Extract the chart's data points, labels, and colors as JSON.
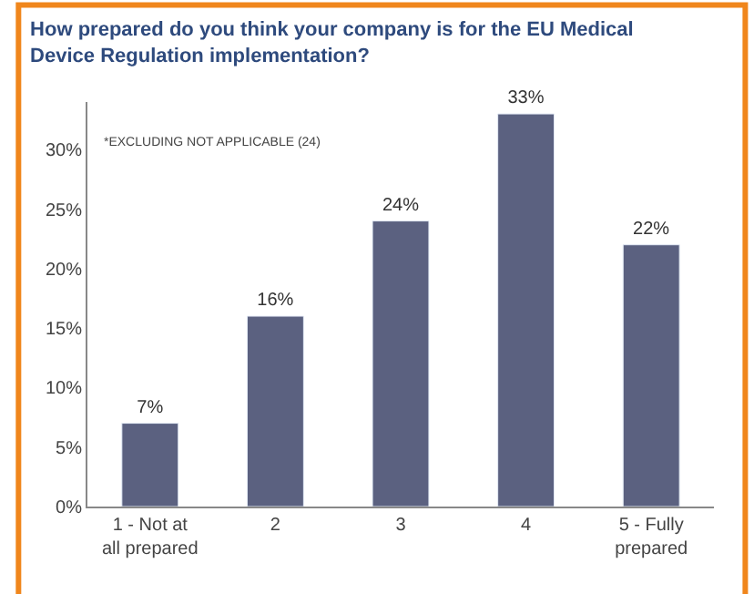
{
  "chart_data": {
    "type": "bar",
    "title": "How prepared do you think your company is for the EU Medical\nDevice Regulation implementation?",
    "categories": [
      "1 - Not at\nall prepared",
      "2",
      "3",
      "4",
      "5 - Fully\nprepared"
    ],
    "values": [
      7,
      16,
      24,
      33,
      22
    ],
    "color": "#5b6180",
    "data_labels": true,
    "value_labels": [
      "7%",
      "16%",
      "24%",
      "33%",
      "22%"
    ],
    "ylim": [
      0,
      34
    ],
    "yticks": [
      {
        "value": 0,
        "label": "0%"
      },
      {
        "value": 5,
        "label": "5%"
      },
      {
        "value": 10,
        "label": "10%"
      },
      {
        "value": 15,
        "label": "15%"
      },
      {
        "value": 20,
        "label": "20%"
      },
      {
        "value": 25,
        "label": "25%"
      },
      {
        "value": 30,
        "label": "30%"
      }
    ],
    "grid": false,
    "annotations": [
      "*EXCLUDING NOT APPLICABLE (24)"
    ]
  }
}
